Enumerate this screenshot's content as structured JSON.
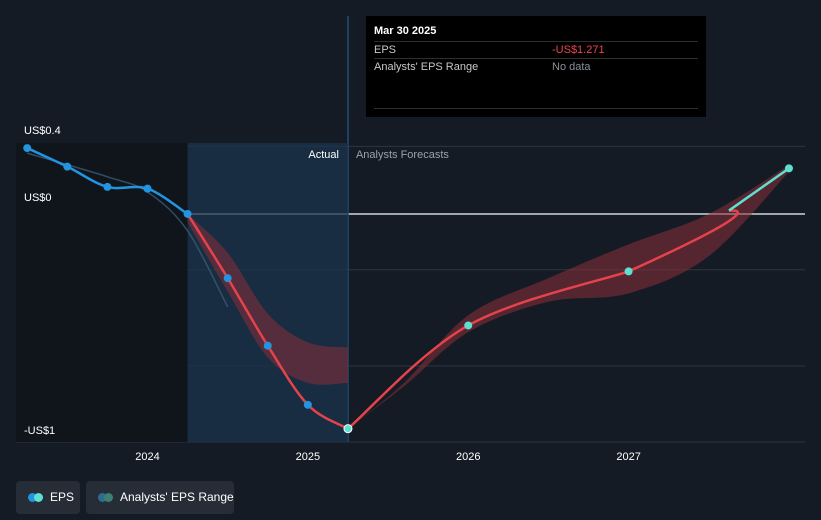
{
  "tooltip": {
    "date": "Mar 30 2025",
    "rows": [
      {
        "label": "EPS",
        "value": "-US$1.271"
      },
      {
        "label": "Analysts' EPS Range",
        "value": "No data"
      }
    ]
  },
  "legend": [
    {
      "label": "EPS"
    },
    {
      "label": "Analysts' EPS Range"
    }
  ],
  "colors": {
    "background": "#151b24",
    "actual_line": "#2394df",
    "forecast_line": "#e5434b",
    "forecast_marker": "#5ee0d0",
    "range_fill": "#8b2d3a",
    "actual_shade": "#19344c",
    "grid": "#2f3640",
    "zero_line": "#d0d4da",
    "tooltip_value_negative": "#f0444b",
    "tooltip_value_muted": "#8a8f98"
  },
  "chart_data": {
    "type": "line",
    "ylim": [
      -1.35,
      0.42
    ],
    "xlim": [
      2023.18,
      2028.1
    ],
    "y_ticks": [
      {
        "value": 0.4,
        "label": "US$0.4"
      },
      {
        "value": 0,
        "label": "US$0"
      },
      {
        "value": -1.35,
        "label": "-US$1"
      }
    ],
    "x_ticks": [
      {
        "value": 2024.0,
        "label": "2024"
      },
      {
        "value": 2025.0,
        "label": "2025"
      },
      {
        "value": 2026.0,
        "label": "2026"
      },
      {
        "value": 2027.0,
        "label": "2027"
      }
    ],
    "region_labels": {
      "actual": "Actual",
      "forecast": "Analysts Forecasts"
    },
    "divider_x": 2025.25,
    "shaded_from": 2024.25,
    "series": [
      {
        "name": "EPS",
        "role": "actual",
        "points": [
          [
            2023.25,
            0.39
          ],
          [
            2023.5,
            0.28
          ],
          [
            2023.75,
            0.16
          ],
          [
            2024.0,
            0.15
          ],
          [
            2024.25,
            0.0
          ],
          [
            2024.5,
            -0.38
          ],
          [
            2024.75,
            -0.78
          ],
          [
            2025.0,
            -1.13
          ],
          [
            2025.25,
            -1.271
          ]
        ]
      },
      {
        "name": "Forecast",
        "role": "forecast",
        "points": [
          [
            2025.25,
            -1.271
          ],
          [
            2026.0,
            -0.66
          ],
          [
            2027.0,
            -0.34
          ],
          [
            2028.0,
            0.27
          ]
        ],
        "markers": [
          [
            2026.0,
            -0.66
          ],
          [
            2027.0,
            -0.34
          ],
          [
            2028.0,
            0.27
          ]
        ]
      }
    ],
    "range_bands": [
      {
        "upper": [
          [
            2024.25,
            0.0
          ],
          [
            2024.5,
            -0.23
          ],
          [
            2024.75,
            -0.59
          ],
          [
            2025.0,
            -0.76
          ],
          [
            2025.25,
            -0.79
          ]
        ],
        "lower": [
          [
            2024.25,
            -0.05
          ],
          [
            2024.5,
            -0.46
          ],
          [
            2024.75,
            -0.85
          ],
          [
            2025.0,
            -1.0
          ],
          [
            2025.25,
            -1.0
          ]
        ]
      },
      {
        "upper": [
          [
            2025.25,
            -1.27
          ],
          [
            2025.6,
            -1.0
          ],
          [
            2026.0,
            -0.6
          ],
          [
            2026.5,
            -0.38
          ],
          [
            2027.0,
            -0.18
          ],
          [
            2027.5,
            0.0
          ],
          [
            2028.0,
            0.29
          ]
        ],
        "lower": [
          [
            2025.25,
            -1.27
          ],
          [
            2025.6,
            -1.02
          ],
          [
            2026.0,
            -0.7
          ],
          [
            2026.5,
            -0.52
          ],
          [
            2027.0,
            -0.47
          ],
          [
            2027.5,
            -0.25
          ],
          [
            2028.0,
            0.25
          ]
        ]
      }
    ],
    "historic_context": [
      [
        2023.25,
        0.36
      ],
      [
        2023.75,
        0.22
      ],
      [
        2024.0,
        0.13
      ],
      [
        2024.25,
        -0.1
      ],
      [
        2024.5,
        -0.55
      ]
    ]
  }
}
